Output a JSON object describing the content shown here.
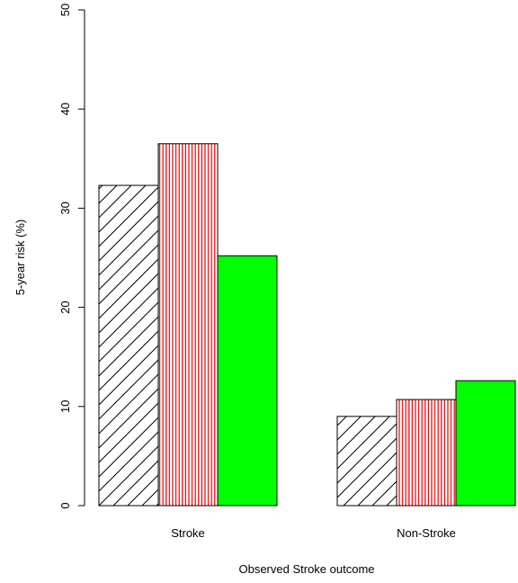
{
  "chart_data": {
    "type": "bar",
    "xlabel": "Observed Stroke outcome",
    "ylabel": "5-year risk (%)",
    "ylim": [
      0,
      50
    ],
    "yticks": [
      "0",
      "10",
      "20",
      "30",
      "40",
      "50"
    ],
    "categories": [
      "Stroke",
      "Non-Stroke"
    ],
    "series": [
      {
        "values": [
          32.3,
          9.0
        ],
        "fill": "diagonal-hatch",
        "color": "#000000"
      },
      {
        "values": [
          36.5,
          10.7
        ],
        "fill": "vertical-hatch",
        "color": "#e0121a"
      },
      {
        "values": [
          25.2,
          12.6
        ],
        "fill": "solid",
        "color": "#00ff00"
      }
    ],
    "legend": "none",
    "grid": false
  }
}
